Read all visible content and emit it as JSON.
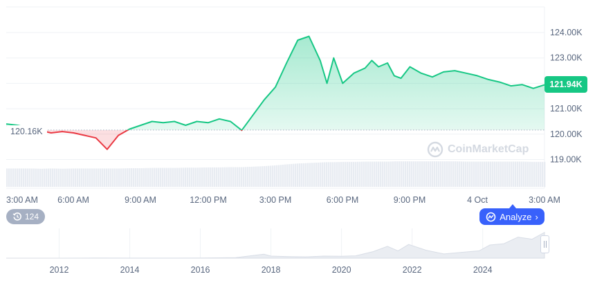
{
  "chart_data": [
    {
      "type": "line",
      "title": "",
      "xlabel": "",
      "ylabel": "",
      "x_ticks": [
        "3:00 AM",
        "6:00 AM",
        "9:00 AM",
        "12:00 PM",
        "3:00 PM",
        "6:00 PM",
        "9:00 PM",
        "4 Oct",
        "3:00 AM"
      ],
      "y_ticks": [
        "124.00K",
        "123.00K",
        "122.00K",
        "121.00K",
        "120.00K",
        "119.00K"
      ],
      "ylim": [
        118.2,
        124.7
      ],
      "baseline_value": 120.16,
      "baseline_label": "120.16K",
      "current_value": 121.94,
      "current_label": "121.94K",
      "x_hours": [
        0,
        0.5,
        1,
        1.5,
        2,
        2.5,
        3,
        3.5,
        4,
        4.5,
        5,
        5.5,
        6,
        6.5,
        7,
        7.5,
        8,
        8.5,
        9,
        9.5,
        10,
        10.5,
        11,
        11.5,
        12,
        12.5,
        13,
        13.5,
        14,
        14.3,
        14.6,
        15,
        15.5,
        16,
        16.3,
        16.6,
        17,
        17.3,
        17.6,
        18,
        18.5,
        19,
        19.5,
        20,
        20.5,
        21,
        21.5,
        22,
        22.5,
        23,
        23.5,
        24
      ],
      "values": [
        120.4,
        120.35,
        120.25,
        120.15,
        120.05,
        120.1,
        120.05,
        119.95,
        119.85,
        119.4,
        119.95,
        120.2,
        120.35,
        120.5,
        120.45,
        120.5,
        120.35,
        120.5,
        120.45,
        120.6,
        120.5,
        120.15,
        120.75,
        121.35,
        121.85,
        122.8,
        123.7,
        123.85,
        122.9,
        122.0,
        123.0,
        122.0,
        122.4,
        122.6,
        122.9,
        122.65,
        122.8,
        122.3,
        122.2,
        122.65,
        122.4,
        122.25,
        122.45,
        122.5,
        122.4,
        122.3,
        122.15,
        122.05,
        121.9,
        121.95,
        121.8,
        121.94
      ],
      "volume_relative": [
        0.7,
        0.7,
        0.7,
        0.69,
        0.7,
        0.69,
        0.7,
        0.7,
        0.7,
        0.7,
        0.7,
        0.71,
        0.71,
        0.72,
        0.72,
        0.72,
        0.73,
        0.73,
        0.74,
        0.74,
        0.75,
        0.75,
        0.77,
        0.79,
        0.82,
        0.86,
        0.89,
        0.91,
        0.93,
        0.94,
        0.94,
        0.95,
        0.95,
        0.96,
        0.96,
        0.96,
        0.96,
        0.97,
        0.97,
        0.97,
        0.97,
        0.97,
        0.97,
        0.97,
        0.96,
        0.96,
        0.96,
        0.96,
        0.96,
        0.96,
        0.95,
        0.95
      ],
      "colors": {
        "up": "#16c784",
        "down": "#ea3943",
        "volume": "#e8ecf2"
      },
      "grid": true
    },
    {
      "type": "area",
      "x_ticks": [
        "2012",
        "2014",
        "2016",
        "2018",
        "2020",
        "2022",
        "2024"
      ],
      "x_years": [
        2010.5,
        2011,
        2012,
        2013,
        2014,
        2015,
        2016,
        2017,
        2017.8,
        2018,
        2018.5,
        2019,
        2019.5,
        2020,
        2020.4,
        2020.9,
        2021.3,
        2021.6,
        2021.9,
        2022.4,
        2022.9,
        2023.4,
        2023.9,
        2024.2,
        2024.6,
        2025.0,
        2025.4,
        2025.75
      ],
      "values_relative": [
        0.0,
        0.0,
        0.0,
        0.005,
        0.003,
        0.002,
        0.004,
        0.02,
        0.15,
        0.08,
        0.06,
        0.05,
        0.08,
        0.07,
        0.09,
        0.25,
        0.45,
        0.28,
        0.52,
        0.3,
        0.16,
        0.22,
        0.28,
        0.5,
        0.55,
        0.8,
        0.72,
        0.98
      ],
      "color": "#eaedf2"
    }
  ],
  "badges": {
    "events_count": "124"
  },
  "buttons": {
    "analyze": "Analyze"
  },
  "watermark": {
    "text": "CoinMarketCap"
  }
}
